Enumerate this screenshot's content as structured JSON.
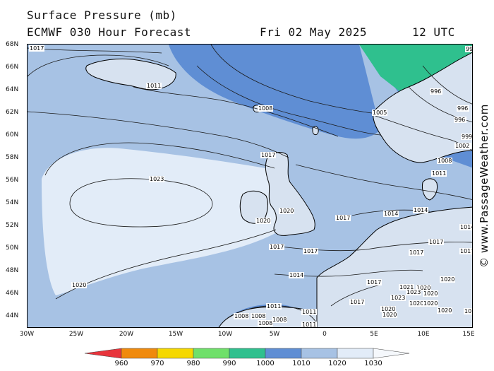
{
  "header": {
    "title": "Surface Pressure (mb)",
    "model": "ECMWF 030 Hour Forecast",
    "date": "Fri 02 May 2025",
    "time": "12 UTC"
  },
  "credit": "© www.PassageWeather.com",
  "lat_labels": [
    "68N",
    "66N",
    "64N",
    "62N",
    "60N",
    "58N",
    "56N",
    "54N",
    "52N",
    "50N",
    "48N",
    "46N",
    "44N"
  ],
  "lon_labels": [
    "30W",
    "25W",
    "20W",
    "15W",
    "10W",
    "5W",
    "0",
    "5E",
    "10E",
    "15E"
  ],
  "legend": {
    "labels": [
      "960",
      "970",
      "980",
      "990",
      "1000",
      "1010",
      "1020",
      "1030"
    ],
    "colors": [
      "#e8343c",
      "#f08a0c",
      "#f5d800",
      "#6fe06a",
      "#2fc08e",
      "#5f8ed4",
      "#a7c2e4",
      "#e2ecf8"
    ]
  },
  "map": {
    "colors": {
      "band_1000": "#2fc08e",
      "band_1010": "#5f8ed4",
      "band_1020": "#a7c2e4",
      "band_1030": "#e2ecf8",
      "land": "#d7e2f0",
      "coast": "#000000",
      "isobar": "#1a1a1a"
    },
    "isobar_labels": [
      "1017",
      "1011",
      "1008",
      "1005",
      "996",
      "996",
      "996",
      "998",
      "999",
      "1002",
      "1008",
      "1011",
      "1017",
      "1023",
      "1020",
      "1020",
      "1017",
      "1014",
      "1014",
      "1014",
      "1017",
      "1017",
      "1017",
      "1017",
      "1020",
      "1014",
      "1017",
      "1017",
      "1020",
      "1021",
      "1023",
      "1020",
      "1017",
      "1017",
      "1011",
      "1008",
      "1008",
      "1008",
      "1008",
      "1011",
      "1011",
      "1020",
      "1020",
      "1020",
      "1020",
      "1023",
      "1020",
      "1020"
    ]
  }
}
